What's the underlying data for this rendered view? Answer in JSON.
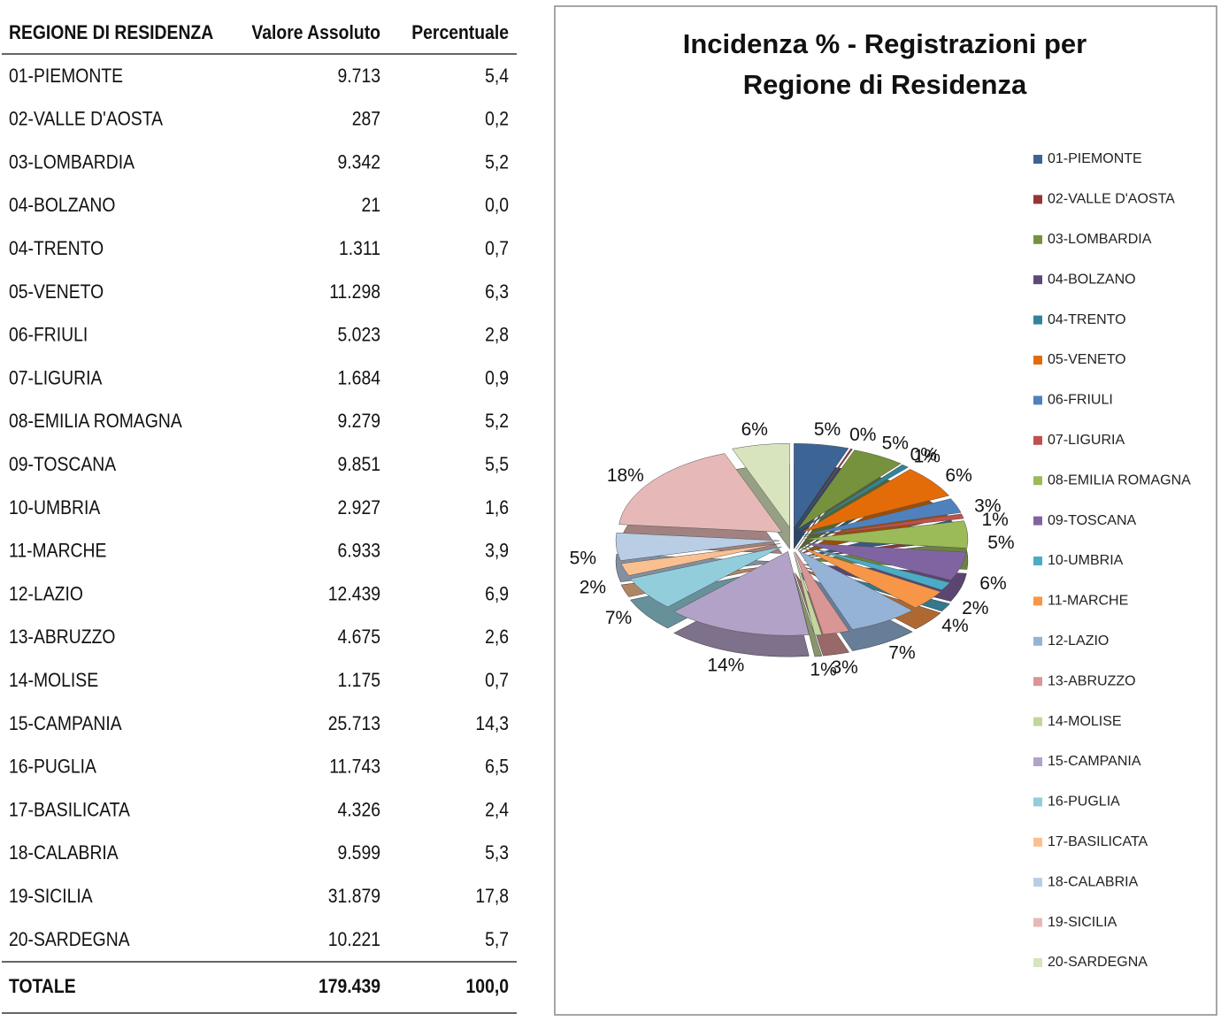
{
  "table": {
    "header": [
      "REGIONE DI RESIDENZA",
      "Valore Assoluto",
      "Percentuale"
    ],
    "rows": [
      [
        "01-PIEMONTE",
        "9.713",
        "5,4"
      ],
      [
        "02-VALLE D'AOSTA",
        "287",
        "0,2"
      ],
      [
        "03-LOMBARDIA",
        "9.342",
        "5,2"
      ],
      [
        "04-BOLZANO",
        "21",
        "0,0"
      ],
      [
        "04-TRENTO",
        "1.311",
        "0,7"
      ],
      [
        "05-VENETO",
        "11.298",
        "6,3"
      ],
      [
        "06-FRIULI",
        "5.023",
        "2,8"
      ],
      [
        "07-LIGURIA",
        "1.684",
        "0,9"
      ],
      [
        "08-EMILIA ROMAGNA",
        "9.279",
        "5,2"
      ],
      [
        "09-TOSCANA",
        "9.851",
        "5,5"
      ],
      [
        "10-UMBRIA",
        "2.927",
        "1,6"
      ],
      [
        "11-MARCHE",
        "6.933",
        "3,9"
      ],
      [
        "12-LAZIO",
        "12.439",
        "6,9"
      ],
      [
        "13-ABRUZZO",
        "4.675",
        "2,6"
      ],
      [
        "14-MOLISE",
        "1.175",
        "0,7"
      ],
      [
        "15-CAMPANIA",
        "25.713",
        "14,3"
      ],
      [
        "16-PUGLIA",
        "11.743",
        "6,5"
      ],
      [
        "17-BASILICATA",
        "4.326",
        "2,4"
      ],
      [
        "18-CALABRIA",
        "9.599",
        "5,3"
      ],
      [
        "19-SICILIA",
        "31.879",
        "17,8"
      ],
      [
        "20-SARDEGNA",
        "10.221",
        "5,7"
      ]
    ],
    "total": [
      "TOTALE",
      "179.439",
      "100,0"
    ]
  },
  "chart_data": {
    "type": "pie",
    "title": [
      "Incidenza % - Registrazioni per",
      "Regione di Residenza"
    ],
    "categories": [
      "01-PIEMONTE",
      "02-VALLE D'AOSTA",
      "03-LOMBARDIA",
      "04-BOLZANO",
      "04-TRENTO",
      "05-VENETO",
      "06-FRIULI",
      "07-LIGURIA",
      "08-EMILIA ROMAGNA",
      "09-TOSCANA",
      "10-UMBRIA",
      "11-MARCHE",
      "12-LAZIO",
      "13-ABRUZZO",
      "14-MOLISE",
      "15-CAMPANIA",
      "16-PUGLIA",
      "17-BASILICATA",
      "18-CALABRIA",
      "19-SICILIA",
      "20-SARDEGNA"
    ],
    "values": [
      5.4,
      0.2,
      5.2,
      0.0,
      0.7,
      6.3,
      2.8,
      0.9,
      5.2,
      5.5,
      1.6,
      3.9,
      6.9,
      2.6,
      0.7,
      14.3,
      6.5,
      2.4,
      5.3,
      17.8,
      5.7
    ],
    "value_labels": [
      "5%",
      "0%",
      "5%",
      "0%",
      "1%",
      "6%",
      "3%",
      "1%",
      "5%",
      "6%",
      "2%",
      "4%",
      "7%",
      "3%",
      "1%",
      "14%",
      "7%",
      "2%",
      "5%",
      "18%",
      "6%"
    ],
    "colors": [
      "#3c6494",
      "#943634",
      "#76923c",
      "#5f497a",
      "#31849b",
      "#e36c09",
      "#4f81bd",
      "#c0504d",
      "#9bbb59",
      "#8064a2",
      "#4bacc6",
      "#f79646",
      "#95b3d7",
      "#d99694",
      "#c3d69b",
      "#b2a2c7",
      "#92cddc",
      "#fac08f",
      "#b9cde5",
      "#e6b9b8",
      "#d7e4bd"
    ],
    "legend": "right"
  }
}
